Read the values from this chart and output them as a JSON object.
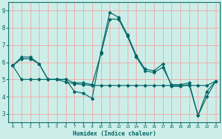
{
  "xlabel": "Humidex (Indice chaleur)",
  "bg_color": "#cceee8",
  "grid_color": "#f0aaaa",
  "line_color": "#006666",
  "x": [
    0,
    1,
    2,
    3,
    4,
    5,
    6,
    7,
    8,
    9,
    10,
    11,
    12,
    13,
    14,
    15,
    16,
    17,
    18,
    19,
    20,
    21,
    22,
    23
  ],
  "line1": [
    5.8,
    6.3,
    6.3,
    5.9,
    5.0,
    5.0,
    5.0,
    4.3,
    4.2,
    3.9,
    6.6,
    8.9,
    8.6,
    7.6,
    6.4,
    5.6,
    5.5,
    5.9,
    4.6,
    4.6,
    4.7,
    2.9,
    4.3,
    4.9
  ],
  "line2": [
    5.8,
    6.2,
    6.2,
    5.9,
    5.0,
    5.0,
    5.0,
    4.8,
    4.8,
    4.7,
    6.5,
    8.5,
    8.5,
    7.5,
    6.3,
    5.5,
    5.4,
    5.7,
    4.7,
    4.7,
    4.8,
    2.9,
    4.0,
    4.9
  ],
  "line3": [
    5.8,
    5.0,
    5.0,
    5.0,
    5.0,
    5.0,
    4.85,
    4.75,
    4.7,
    4.65,
    4.65,
    4.65,
    4.65,
    4.65,
    4.65,
    4.65,
    4.65,
    4.65,
    4.65,
    4.65,
    4.65,
    4.65,
    4.65,
    4.9
  ],
  "ylim": [
    2.5,
    9.5
  ],
  "yticks": [
    3,
    4,
    5,
    6,
    7,
    8,
    9
  ],
  "xlim": [
    -0.5,
    23.5
  ]
}
